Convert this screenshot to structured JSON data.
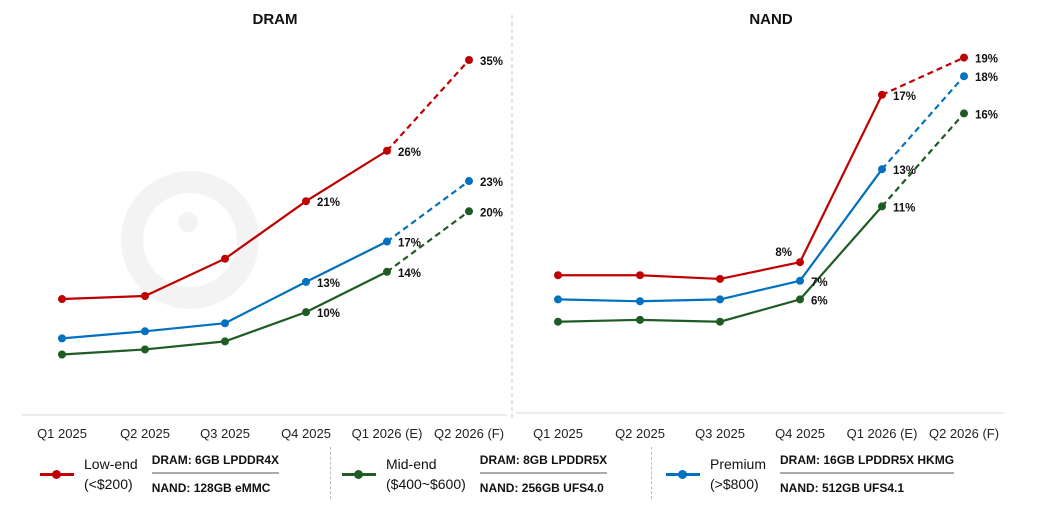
{
  "watermark": "Counterpoint",
  "chart_data": [
    {
      "type": "line",
      "title": "DRAM",
      "categories": [
        "Q1 2025",
        "Q2 2025",
        "Q3 2025",
        "Q4 2025",
        "Q1 2026 (E)",
        "Q2 2026 (F)"
      ],
      "ylim": [
        0,
        35
      ],
      "grid": false,
      "series": [
        {
          "name": "Low-end (<$200)",
          "color": "#c00000",
          "values": [
            11.3,
            11.6,
            15.3,
            21,
            26,
            35
          ],
          "labels": [
            "",
            "",
            "",
            "21%",
            "26%",
            "35%"
          ]
        },
        {
          "name": "Mid-end ($400~$600)",
          "color": "#1e5c23",
          "values": [
            5.8,
            6.3,
            7.1,
            10,
            14,
            20
          ],
          "labels": [
            "",
            "",
            "",
            "10%",
            "14%",
            "20%"
          ]
        },
        {
          "name": "Premium (>$800)",
          "color": "#0070c0",
          "values": [
            7.4,
            8.1,
            8.9,
            13,
            17,
            23
          ],
          "labels": [
            "",
            "",
            "",
            "13%",
            "17%",
            "23%"
          ]
        }
      ],
      "forecast_from_index": 4
    },
    {
      "type": "line",
      "title": "NAND",
      "categories": [
        "Q1 2025",
        "Q2 2025",
        "Q3 2025",
        "Q4 2025",
        "Q1 2026 (E)",
        "Q2 2026 (F)"
      ],
      "ylim": [
        0,
        20
      ],
      "grid": false,
      "series": [
        {
          "name": "Low-end (<$200)",
          "color": "#c00000",
          "values": [
            7.3,
            7.3,
            7.1,
            8,
            17,
            19
          ],
          "labels": [
            "",
            "",
            "",
            "8%",
            "17%",
            "19%"
          ]
        },
        {
          "name": "Mid-end ($400~$600)",
          "color": "#1e5c23",
          "values": [
            4.8,
            4.9,
            4.8,
            6,
            11,
            16
          ],
          "labels": [
            "",
            "",
            "",
            "6%",
            "11%",
            "16%"
          ]
        },
        {
          "name": "Premium (>$800)",
          "color": "#0070c0",
          "values": [
            6.0,
            5.9,
            6.0,
            7,
            13,
            18
          ],
          "labels": [
            "",
            "",
            "",
            "7%",
            "13%",
            "18%"
          ]
        }
      ],
      "forecast_from_index": 4
    }
  ],
  "legend": [
    {
      "name": "Low-end",
      "price": "(<$200)",
      "color": "#c00000",
      "dram": "DRAM: 6GB LPDDR4X",
      "nand": "NAND: 128GB eMMC"
    },
    {
      "name": "Mid-end",
      "price": "($400~$600)",
      "color": "#1e5c23",
      "dram": "DRAM: 8GB LPDDR5X",
      "nand": "NAND: 256GB UFS4.0"
    },
    {
      "name": "Premium",
      "price": "(>$800)",
      "color": "#0070c0",
      "dram": "DRAM: 16GB LPDDR5X HKMG",
      "nand": "NAND: 512GB UFS4.1"
    }
  ]
}
